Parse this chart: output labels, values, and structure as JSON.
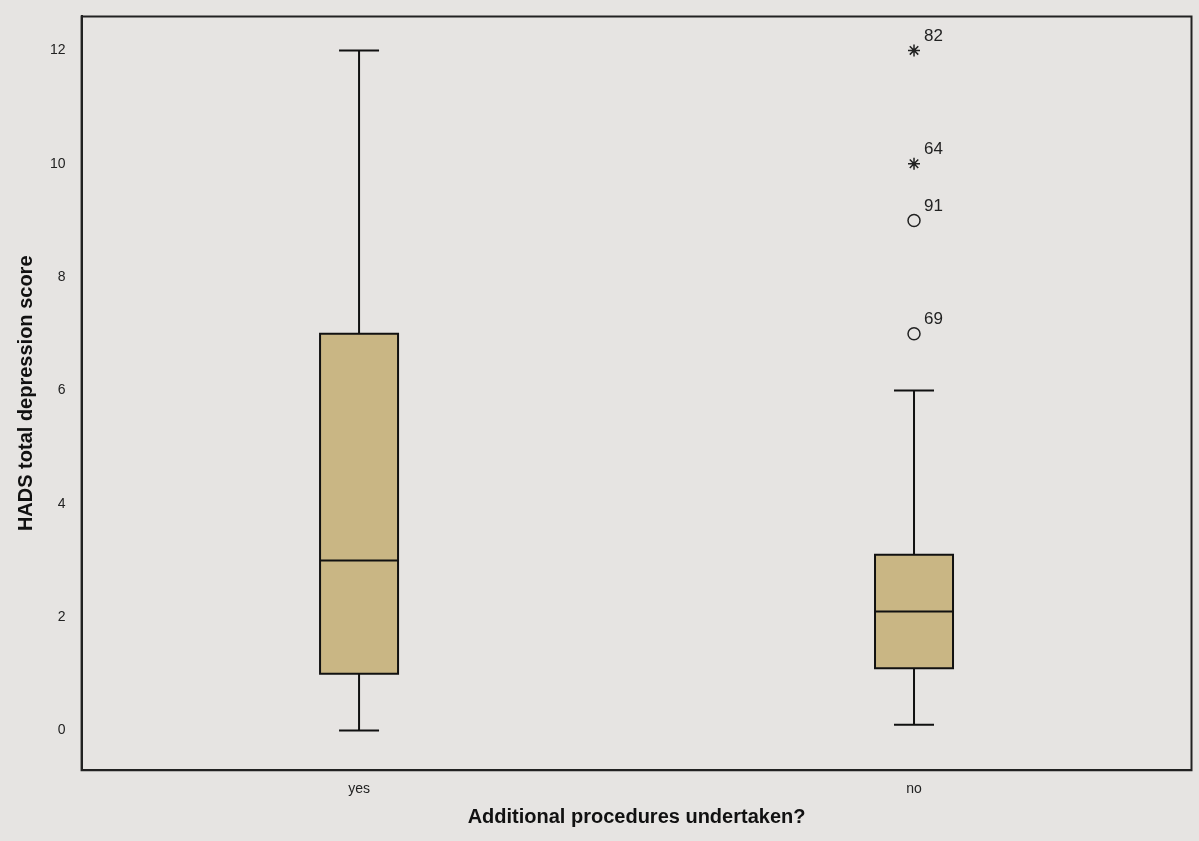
{
  "chart_data": {
    "type": "box",
    "xlabel": "Additional procedures undertaken?",
    "ylabel": "HADS total depression score",
    "categories": [
      "yes",
      "no"
    ],
    "color": "#c9b684",
    "boxes": [
      {
        "low": 0,
        "q1": 1,
        "median": 3,
        "q3": 7,
        "high": 12
      },
      {
        "low": 0.1,
        "q1": 1.1,
        "median": 2.1,
        "q3": 3.1,
        "high": 6
      }
    ],
    "series": [
      {
        "type": "scatter",
        "x": [
          "no",
          "no"
        ],
        "values": [
          10,
          12
        ],
        "marker": "cross",
        "color": "#222222"
      },
      {
        "type": "scatter",
        "x": [
          "no",
          "no"
        ],
        "values": [
          7,
          9
        ],
        "marker": "circle",
        "color": "#222222"
      }
    ],
    "ylim": [
      -0.7,
      12.6
    ],
    "yticks": [
      0,
      2,
      4,
      6,
      8,
      10,
      12
    ],
    "grid": false,
    "legend": false,
    "annotations": [
      {
        "text": "82",
        "x": "no",
        "y": 12
      },
      {
        "text": "64",
        "x": "no",
        "y": 10
      },
      {
        "text": "91",
        "x": "no",
        "y": 9
      },
      {
        "text": "69",
        "x": "no",
        "y": 7
      }
    ]
  }
}
